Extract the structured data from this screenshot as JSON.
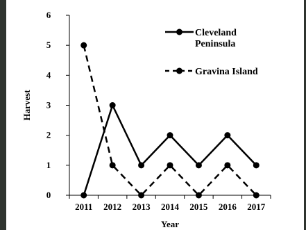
{
  "chart_data": {
    "type": "line",
    "title": "",
    "xlabel": "Year",
    "ylabel": "Harvest",
    "categories": [
      "2011",
      "2012",
      "2013",
      "2014",
      "2015",
      "2016",
      "2017"
    ],
    "ylim": [
      0,
      6
    ],
    "yticks": [
      0,
      1,
      2,
      3,
      4,
      5,
      6
    ],
    "grid": false,
    "legend_position": "top-right",
    "series": [
      {
        "name": "Cleveland Peninsula",
        "name_lines": [
          "Cleveland",
          "Peninsula"
        ],
        "values": [
          0,
          3,
          1,
          2,
          1,
          2,
          1
        ],
        "style": "solid",
        "color": "#000000"
      },
      {
        "name": "Gravina Island",
        "name_lines": [
          "Gravina Island"
        ],
        "values": [
          5,
          1,
          0,
          1,
          0,
          1,
          0
        ],
        "style": "dashed",
        "color": "#000000"
      }
    ]
  }
}
